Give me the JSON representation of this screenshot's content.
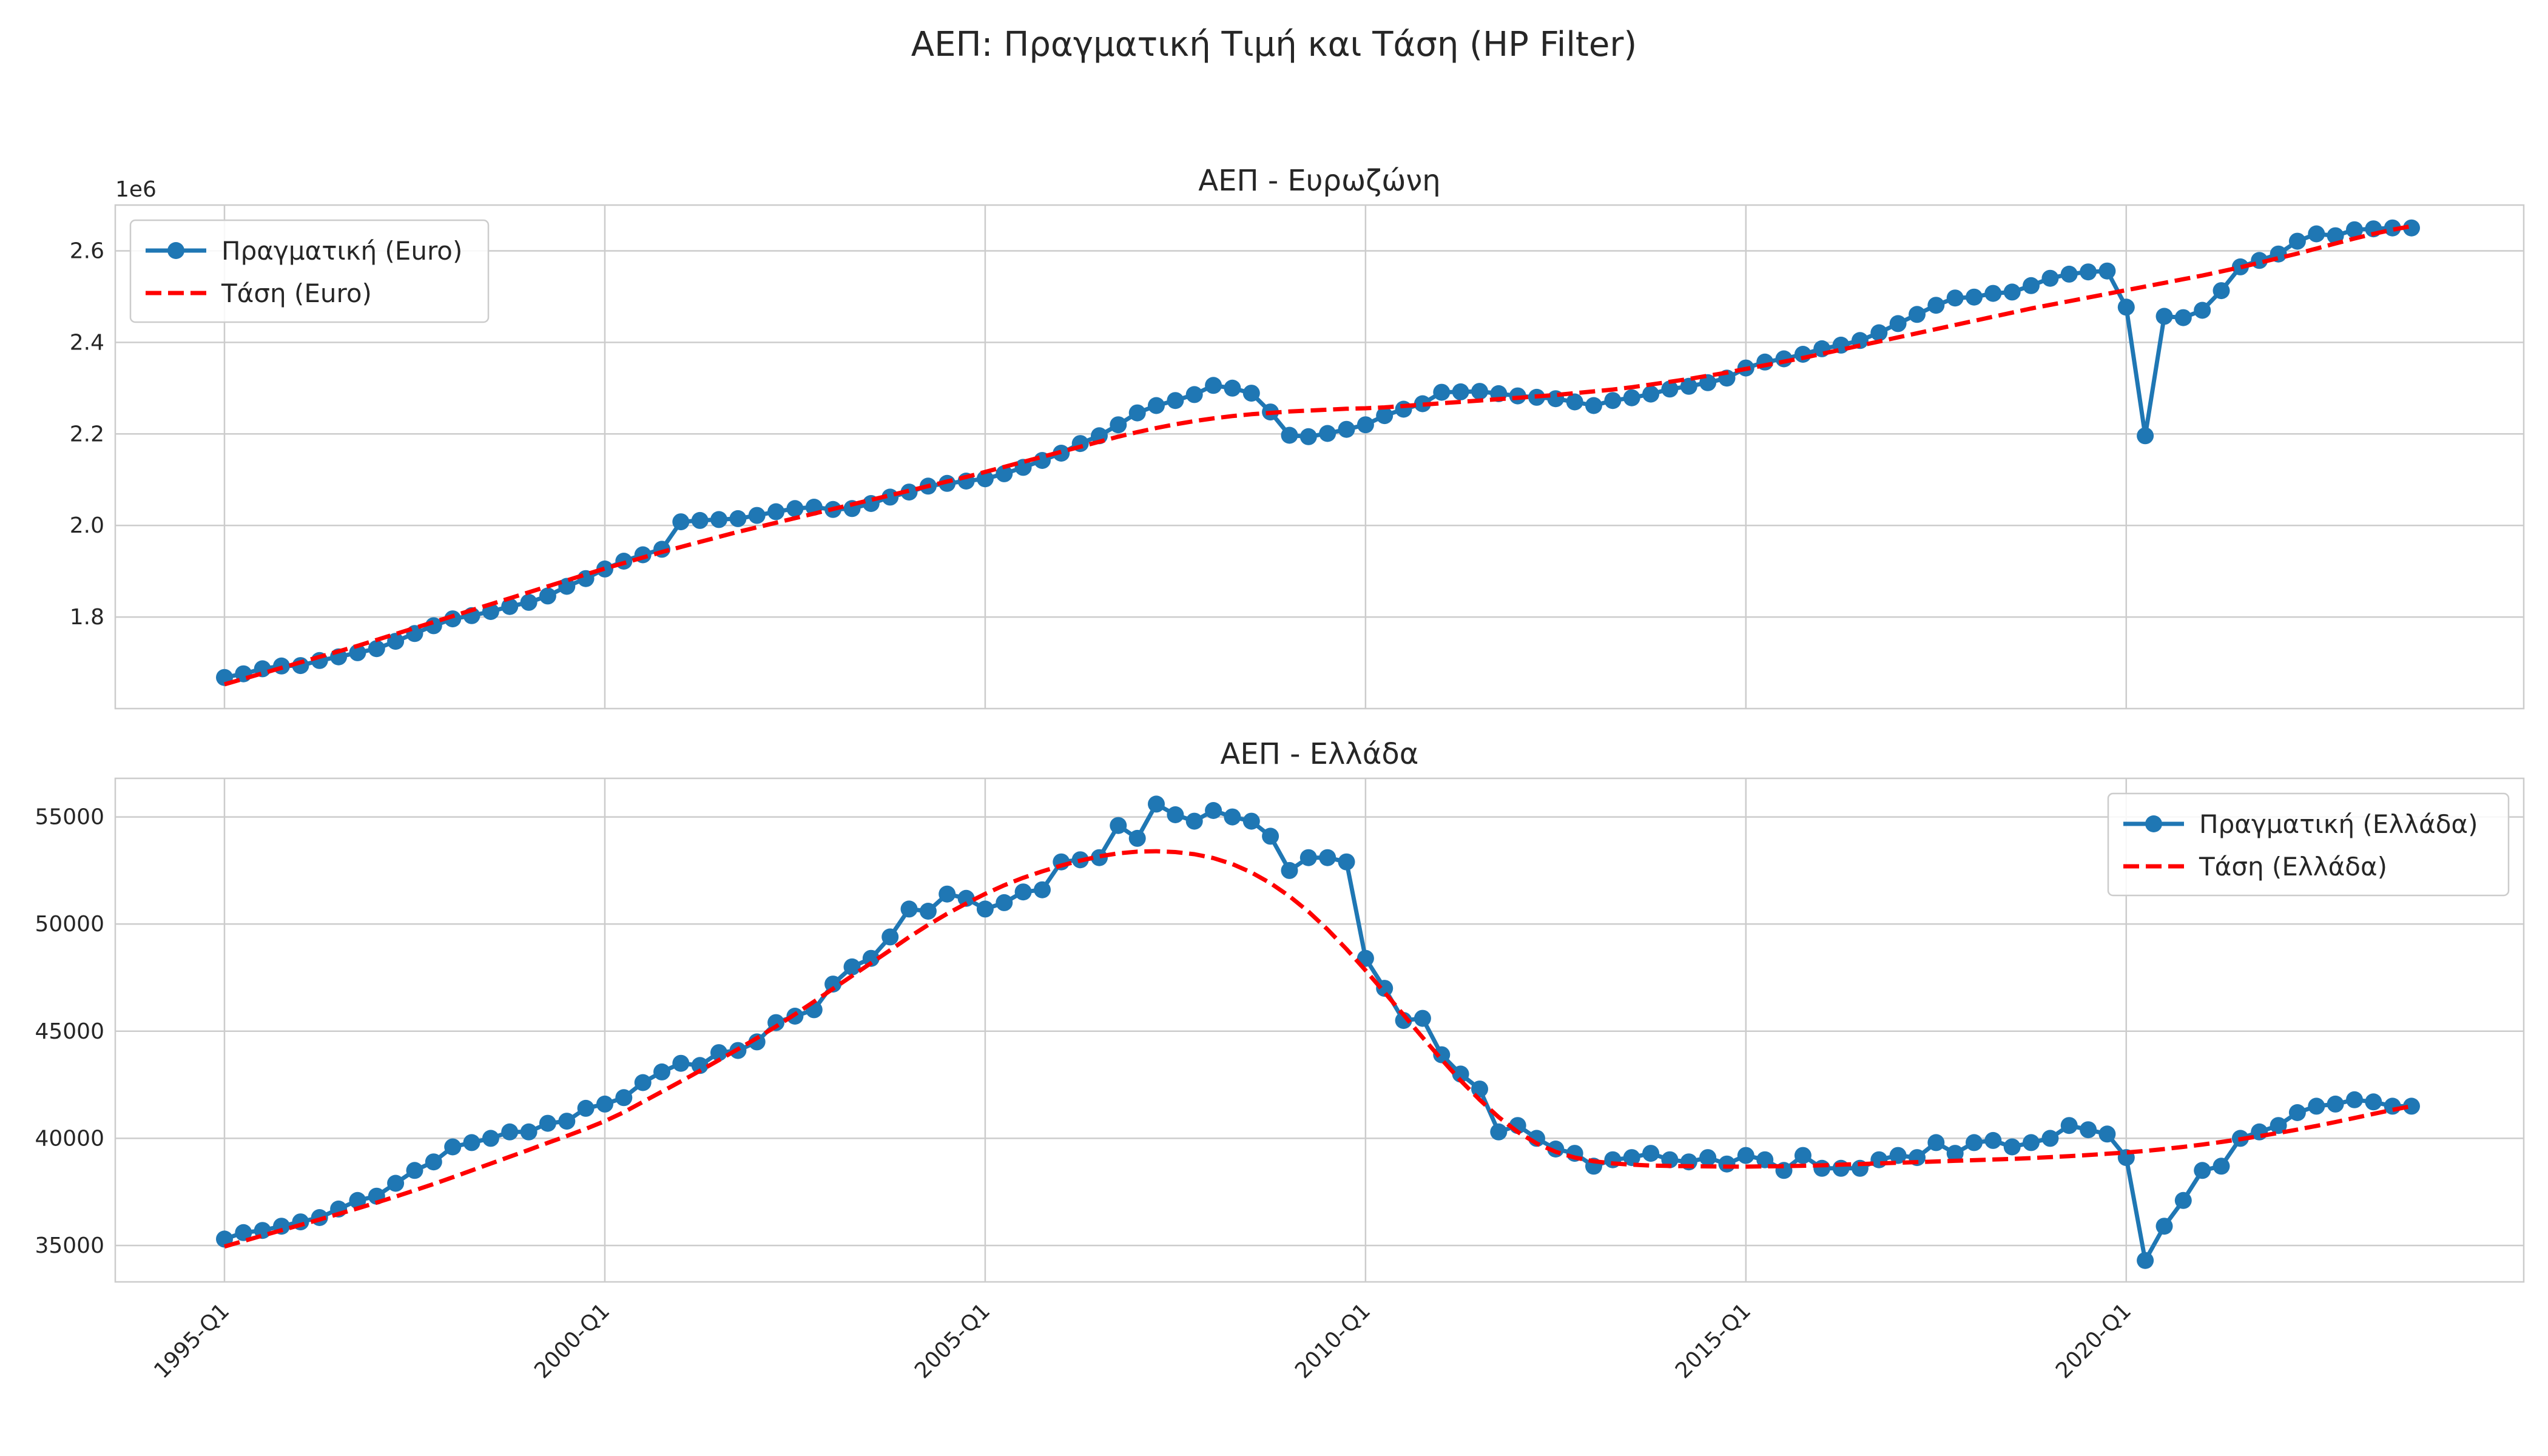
{
  "chart_data": {
    "title": "ΑΕΠ: Πραγματική Τιμή και Τάση (HP Filter)",
    "x": [
      "1995-Q1",
      "1995-Q2",
      "1995-Q3",
      "1995-Q4",
      "1996-Q1",
      "1996-Q2",
      "1996-Q3",
      "1996-Q4",
      "1997-Q1",
      "1997-Q2",
      "1997-Q3",
      "1997-Q4",
      "1998-Q1",
      "1998-Q2",
      "1998-Q3",
      "1998-Q4",
      "1999-Q1",
      "1999-Q2",
      "1999-Q3",
      "1999-Q4",
      "2000-Q1",
      "2000-Q2",
      "2000-Q3",
      "2000-Q4",
      "2001-Q1",
      "2001-Q2",
      "2001-Q3",
      "2001-Q4",
      "2002-Q1",
      "2002-Q2",
      "2002-Q3",
      "2002-Q4",
      "2003-Q1",
      "2003-Q2",
      "2003-Q3",
      "2003-Q4",
      "2004-Q1",
      "2004-Q2",
      "2004-Q3",
      "2004-Q4",
      "2005-Q1",
      "2005-Q2",
      "2005-Q3",
      "2005-Q4",
      "2006-Q1",
      "2006-Q2",
      "2006-Q3",
      "2006-Q4",
      "2007-Q1",
      "2007-Q2",
      "2007-Q3",
      "2007-Q4",
      "2008-Q1",
      "2008-Q2",
      "2008-Q3",
      "2008-Q4",
      "2009-Q1",
      "2009-Q2",
      "2009-Q3",
      "2009-Q4",
      "2010-Q1",
      "2010-Q2",
      "2010-Q3",
      "2010-Q4",
      "2011-Q1",
      "2011-Q2",
      "2011-Q3",
      "2011-Q4",
      "2012-Q1",
      "2012-Q2",
      "2012-Q3",
      "2012-Q4",
      "2013-Q1",
      "2013-Q2",
      "2013-Q3",
      "2013-Q4",
      "2014-Q1",
      "2014-Q2",
      "2014-Q3",
      "2014-Q4",
      "2015-Q1",
      "2015-Q2",
      "2015-Q3",
      "2015-Q4",
      "2016-Q1",
      "2016-Q2",
      "2016-Q3",
      "2016-Q4",
      "2017-Q1",
      "2017-Q2",
      "2017-Q3",
      "2017-Q4",
      "2018-Q1",
      "2018-Q2",
      "2018-Q3",
      "2018-Q4",
      "2019-Q1",
      "2019-Q2",
      "2019-Q3",
      "2019-Q4",
      "2020-Q1",
      "2020-Q2",
      "2020-Q3",
      "2020-Q4",
      "2021-Q1",
      "2021-Q2",
      "2021-Q3",
      "2021-Q4",
      "2022-Q1",
      "2022-Q2",
      "2022-Q3",
      "2022-Q4",
      "2023-Q1",
      "2023-Q2",
      "2023-Q3",
      "2023-Q4"
    ],
    "xticks": [
      "1995-Q1",
      "2000-Q1",
      "2005-Q1",
      "2010-Q1",
      "2015-Q1",
      "2020-Q1"
    ],
    "panels": [
      {
        "type": "line",
        "title": "ΑΕΠ - Ευρωζώνη",
        "offset_text": "1e6",
        "ylim": [
          1.6,
          2.7
        ],
        "yticks": [
          1.8,
          2.0,
          2.2,
          2.4,
          2.6
        ],
        "ytick_labels": [
          "1.8",
          "2.0",
          "2.2",
          "2.4",
          "2.6"
        ],
        "legend_position": "upper-left",
        "series": [
          {
            "name": "Πραγματική (Euro)",
            "color": "#1f77b4",
            "style": "solid-markers",
            "values": [
              1.668,
              1.676,
              1.687,
              1.693,
              1.694,
              1.705,
              1.713,
              1.722,
              1.731,
              1.747,
              1.764,
              1.781,
              1.796,
              1.803,
              1.812,
              1.823,
              1.832,
              1.846,
              1.867,
              1.884,
              1.905,
              1.922,
              1.936,
              1.948,
              2.008,
              2.011,
              2.013,
              2.015,
              2.022,
              2.03,
              2.037,
              2.04,
              2.035,
              2.037,
              2.048,
              2.062,
              2.073,
              2.086,
              2.092,
              2.097,
              2.102,
              2.113,
              2.127,
              2.142,
              2.158,
              2.179,
              2.196,
              2.22,
              2.246,
              2.262,
              2.273,
              2.286,
              2.306,
              2.3,
              2.289,
              2.248,
              2.197,
              2.194,
              2.201,
              2.21,
              2.22,
              2.24,
              2.254,
              2.266,
              2.291,
              2.292,
              2.293,
              2.288,
              2.283,
              2.28,
              2.277,
              2.27,
              2.262,
              2.273,
              2.279,
              2.287,
              2.298,
              2.304,
              2.312,
              2.322,
              2.344,
              2.357,
              2.364,
              2.374,
              2.386,
              2.394,
              2.404,
              2.421,
              2.441,
              2.461,
              2.481,
              2.497,
              2.499,
              2.507,
              2.51,
              2.524,
              2.54,
              2.549,
              2.554,
              2.556,
              2.477,
              2.196,
              2.457,
              2.454,
              2.47,
              2.513,
              2.565,
              2.579,
              2.593,
              2.621,
              2.637,
              2.633,
              2.646,
              2.648,
              2.65,
              2.65
            ]
          },
          {
            "name": "Τάση (Euro)",
            "color": "#ff0000",
            "style": "dashed",
            "values": [
              1.653,
              1.665,
              1.677,
              1.689,
              1.701,
              1.713,
              1.725,
              1.737,
              1.75,
              1.763,
              1.776,
              1.789,
              1.802,
              1.815,
              1.828,
              1.841,
              1.854,
              1.867,
              1.88,
              1.893,
              1.906,
              1.918,
              1.93,
              1.942,
              1.953,
              1.964,
              1.975,
              1.986,
              1.996,
              2.006,
              2.016,
              2.026,
              2.036,
              2.046,
              2.056,
              2.066,
              2.076,
              2.086,
              2.096,
              2.106,
              2.117,
              2.128,
              2.139,
              2.15,
              2.161,
              2.172,
              2.183,
              2.194,
              2.204,
              2.213,
              2.221,
              2.228,
              2.234,
              2.239,
              2.243,
              2.246,
              2.249,
              2.251,
              2.253,
              2.255,
              2.256,
              2.258,
              2.261,
              2.264,
              2.267,
              2.27,
              2.273,
              2.276,
              2.279,
              2.282,
              2.285,
              2.289,
              2.293,
              2.297,
              2.302,
              2.308,
              2.314,
              2.32,
              2.327,
              2.334,
              2.342,
              2.35,
              2.358,
              2.366,
              2.375,
              2.384,
              2.393,
              2.402,
              2.411,
              2.42,
              2.429,
              2.438,
              2.447,
              2.456,
              2.465,
              2.474,
              2.482,
              2.49,
              2.498,
              2.506,
              2.514,
              2.522,
              2.53,
              2.538,
              2.546,
              2.555,
              2.564,
              2.574,
              2.584,
              2.594,
              2.605,
              2.616,
              2.627,
              2.637,
              2.646,
              2.654
            ]
          }
        ]
      },
      {
        "type": "line",
        "title": "ΑΕΠ - Ελλάδα",
        "offset_text": "",
        "ylim": [
          33300,
          56800
        ],
        "yticks": [
          35000,
          40000,
          45000,
          50000,
          55000
        ],
        "ytick_labels": [
          "35000",
          "40000",
          "45000",
          "50000",
          "55000"
        ],
        "legend_position": "upper-right",
        "series": [
          {
            "name": "Πραγματική (Ελλάδα)",
            "color": "#1f77b4",
            "style": "solid-markers",
            "values": [
              35300,
              35600,
              35700,
              35900,
              36100,
              36300,
              36700,
              37100,
              37300,
              37900,
              38500,
              38900,
              39600,
              39800,
              40000,
              40300,
              40300,
              40700,
              40800,
              41400,
              41600,
              41900,
              42600,
              43100,
              43500,
              43400,
              44000,
              44100,
              44500,
              45400,
              45700,
              46000,
              47200,
              48000,
              48400,
              49400,
              50700,
              50600,
              51400,
              51200,
              50700,
              51000,
              51500,
              51600,
              52900,
              53000,
              53100,
              54600,
              54000,
              55600,
              55100,
              54800,
              55300,
              55000,
              54800,
              54100,
              52500,
              53100,
              53100,
              52900,
              48400,
              47000,
              45500,
              45600,
              43900,
              43000,
              42300,
              40300,
              40600,
              40000,
              39500,
              39300,
              38700,
              39000,
              39100,
              39300,
              39000,
              38900,
              39100,
              38800,
              39200,
              39000,
              38500,
              39200,
              38600,
              38600,
              38600,
              39000,
              39200,
              39100,
              39800,
              39300,
              39800,
              39900,
              39600,
              39800,
              40000,
              40600,
              40400,
              40200,
              39100,
              34300,
              35900,
              37100,
              38500,
              38700,
              40000,
              40300,
              40600,
              41200,
              41500,
              41600,
              41800,
              41700,
              41500,
              41500
            ]
          },
          {
            "name": "Τάση (Ελλάδα)",
            "color": "#ff0000",
            "style": "dashed",
            "values": [
              34950,
              35205,
              35460,
              35710,
              35960,
              36210,
              36470,
              36730,
              37000,
              37280,
              37570,
              37870,
              38180,
              38500,
              38820,
              39140,
              39460,
              39790,
              40110,
              40440,
              40800,
              41220,
              41700,
              42180,
              42660,
              43150,
              43650,
              44160,
              44680,
              45220,
              45790,
              46380,
              46980,
              47580,
              48180,
              48780,
              49390,
              49960,
              50480,
              50960,
              51410,
              51810,
              52160,
              52460,
              52730,
              52960,
              53160,
              53300,
              53380,
              53400,
              53360,
              53260,
              53080,
              52800,
              52410,
              51910,
              51300,
              50580,
              49750,
              48830,
              47840,
              46810,
              45760,
              44710,
              43680,
              42700,
              41800,
              40990,
              40300,
              39760,
              39370,
              39100,
              38930,
              38830,
              38770,
              38730,
              38710,
              38700,
              38690,
              38680,
              38680,
              38690,
              38700,
              38720,
              38740,
              38770,
              38800,
              38830,
              38860,
              38890,
              38920,
              38950,
              38980,
              39010,
              39040,
              39080,
              39120,
              39170,
              39220,
              39280,
              39340,
              39410,
              39500,
              39600,
              39710,
              39830,
              39960,
              40100,
              40250,
              40410,
              40580,
              40760,
              40950,
              41140,
              41330,
              41500
            ]
          }
        ]
      }
    ]
  }
}
